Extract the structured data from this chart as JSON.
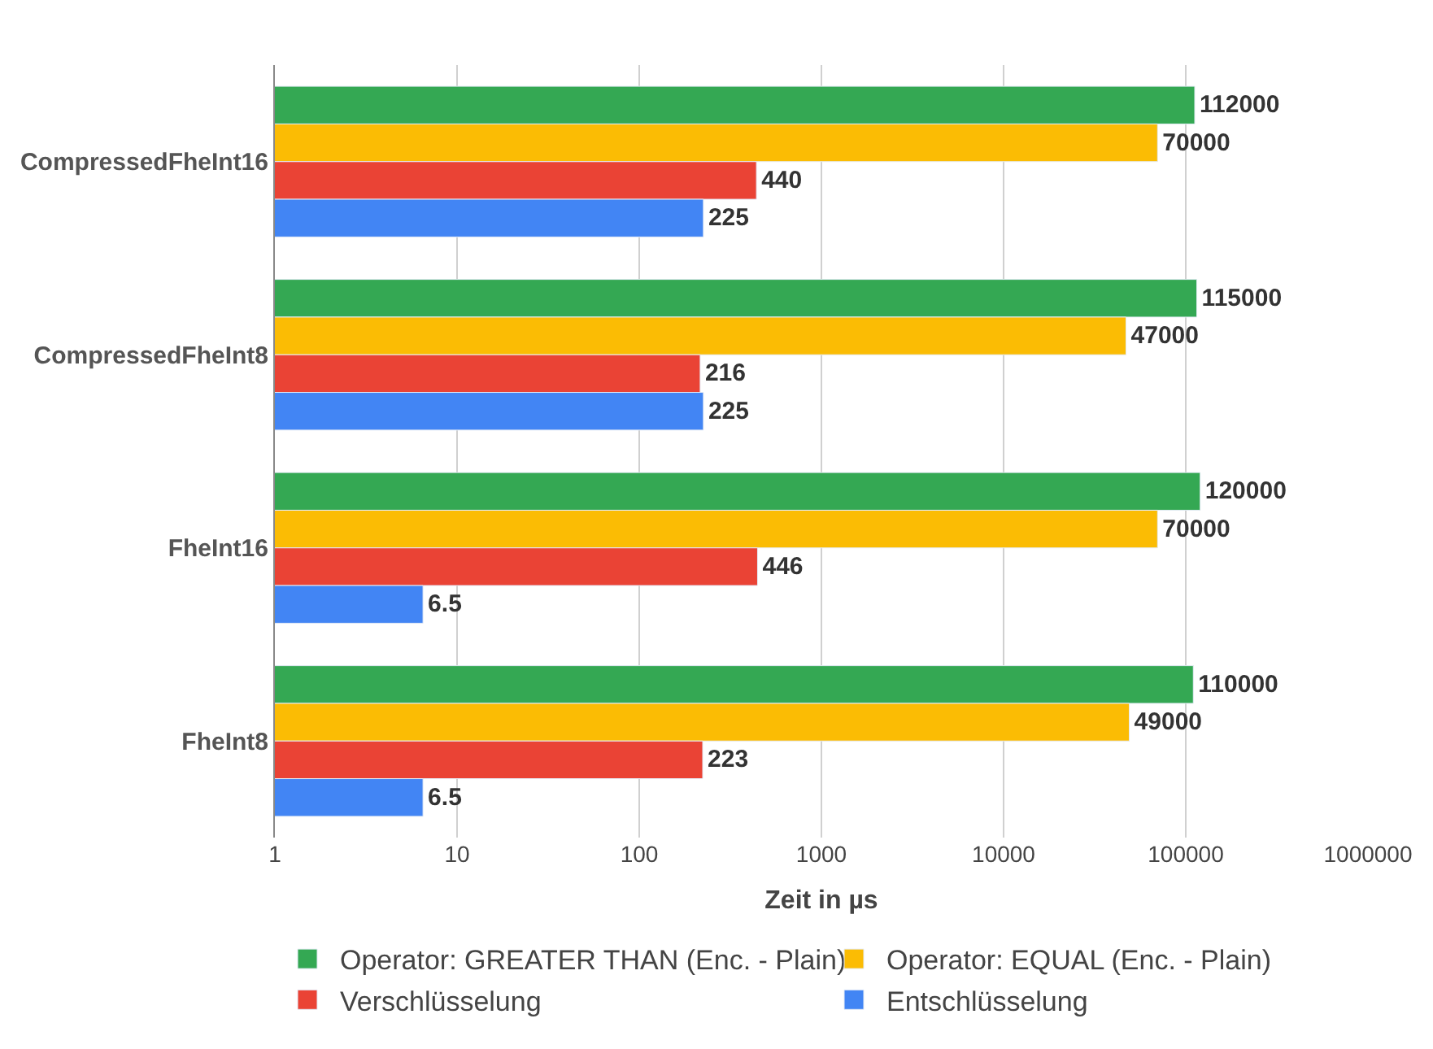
{
  "chart_data": {
    "type": "bar",
    "orientation": "horizontal",
    "xlabel": "Zeit in µs",
    "categories": [
      "CompressedFheInt16",
      "CompressedFheInt8",
      "FheInt16",
      "FheInt8"
    ],
    "series": [
      {
        "name": "Operator: GREATER THAN (Enc. - Plain)",
        "color": "#34a853",
        "values": [
          112000,
          115000,
          120000,
          110000
        ]
      },
      {
        "name": "Operator: EQUAL (Enc. - Plain)",
        "color": "#fbbc04",
        "values": [
          70000,
          47000,
          70000,
          49000
        ]
      },
      {
        "name": "Verschlüsselung",
        "color": "#ea4335",
        "values": [
          440,
          216,
          446,
          223
        ]
      },
      {
        "name": "Entschlüsselung",
        "color": "#4285f4",
        "values": [
          225,
          225,
          6.5,
          6.5
        ]
      }
    ],
    "log": "x",
    "xlim": [
      1,
      1000000
    ],
    "xticks": [
      1,
      10,
      100,
      1000,
      10000,
      100000,
      1000000
    ],
    "grid": "x",
    "legend": "bottom",
    "data_labels": true
  }
}
